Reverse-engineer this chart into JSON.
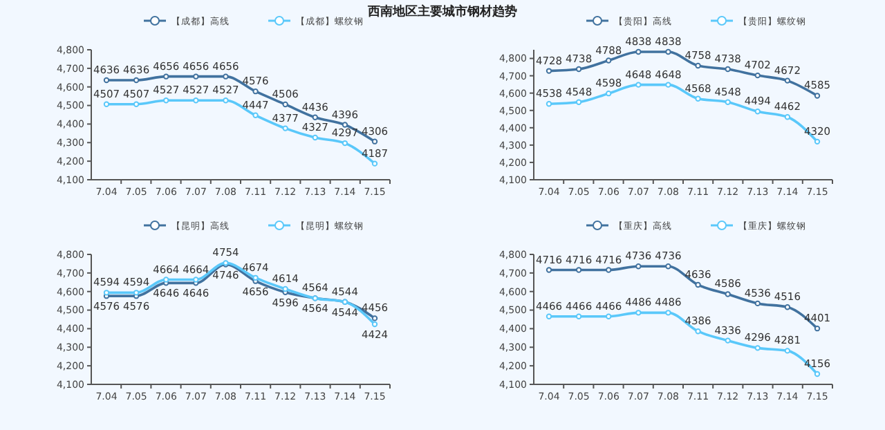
{
  "chart_data": [
    {
      "type": "line",
      "title": "西南地区主要城市钢材趋势",
      "categories": [
        "7.04",
        "7.05",
        "7.06",
        "7.07",
        "7.08",
        "7.11",
        "7.12",
        "7.13",
        "7.14",
        "7.15"
      ],
      "series": [
        {
          "name": "【成都】高线",
          "color": "#41729f",
          "values": [
            4636,
            4636,
            4656,
            4656,
            4656,
            4576,
            4506,
            4436,
            4396,
            4306
          ]
        },
        {
          "name": "【成都】螺纹钢",
          "color": "#5ac8fa",
          "values": [
            4507,
            4507,
            4527,
            4527,
            4527,
            4447,
            4377,
            4327,
            4297,
            4187
          ]
        }
      ],
      "ylim": [
        4100,
        4800
      ],
      "yticks": [
        {
          "value": 4100,
          "label": "4,100"
        },
        {
          "value": 4200,
          "label": "4,200"
        },
        {
          "value": 4300,
          "label": "4,300"
        },
        {
          "value": 4400,
          "label": "4,400"
        },
        {
          "value": 4500,
          "label": "4,500"
        },
        {
          "value": 4600,
          "label": "4,600"
        },
        {
          "value": 4700,
          "label": "4,700"
        },
        {
          "value": 4800,
          "label": "4,800"
        }
      ],
      "legend": "top",
      "marker": "circle",
      "data_labels": true,
      "grid": false
    },
    {
      "type": "line",
      "categories": [
        "7.04",
        "7.05",
        "7.06",
        "7.07",
        "7.08",
        "7.11",
        "7.12",
        "7.13",
        "7.14",
        "7.15"
      ],
      "series": [
        {
          "name": "【贵阳】高线",
          "color": "#41729f",
          "values": [
            4728,
            4738,
            4788,
            4838,
            4838,
            4758,
            4738,
            4702,
            4672,
            4585
          ]
        },
        {
          "name": "【贵阳】螺纹钢",
          "color": "#5ac8fa",
          "values": [
            4538,
            4548,
            4598,
            4648,
            4648,
            4568,
            4548,
            4494,
            4462,
            4320
          ]
        }
      ],
      "ylim": [
        4100,
        4850
      ],
      "yticks": [
        {
          "value": 4100,
          "label": "4,100"
        },
        {
          "value": 4200,
          "label": "4,200"
        },
        {
          "value": 4300,
          "label": "4,300"
        },
        {
          "value": 4400,
          "label": "4,400"
        },
        {
          "value": 4500,
          "label": "4,500"
        },
        {
          "value": 4600,
          "label": "4,600"
        },
        {
          "value": 4700,
          "label": "4,700"
        },
        {
          "value": 4800,
          "label": "4,800"
        }
      ],
      "legend": "top",
      "marker": "circle",
      "data_labels": true,
      "grid": false
    },
    {
      "type": "line",
      "categories": [
        "7.04",
        "7.05",
        "7.06",
        "7.07",
        "7.08",
        "7.11",
        "7.12",
        "7.13",
        "7.14",
        "7.15"
      ],
      "series": [
        {
          "name": "【昆明】高线",
          "color": "#41729f",
          "values": [
            4576,
            4576,
            4646,
            4646,
            4746,
            4656,
            4596,
            4564,
            4544,
            4456
          ]
        },
        {
          "name": "【昆明】螺纹钢",
          "color": "#5ac8fa",
          "values": [
            4594,
            4594,
            4664,
            4664,
            4754,
            4674,
            4614,
            4564,
            4544,
            4424
          ]
        }
      ],
      "ylim": [
        4100,
        4800
      ],
      "yticks": [
        {
          "value": 4100,
          "label": "4,100"
        },
        {
          "value": 4200,
          "label": "4,200"
        },
        {
          "value": 4300,
          "label": "4,300"
        },
        {
          "value": 4400,
          "label": "4,400"
        },
        {
          "value": 4500,
          "label": "4,500"
        },
        {
          "value": 4600,
          "label": "4,600"
        },
        {
          "value": 4700,
          "label": "4,700"
        },
        {
          "value": 4800,
          "label": "4,800"
        }
      ],
      "legend": "top",
      "marker": "circle",
      "data_labels": true,
      "grid": false
    },
    {
      "type": "line",
      "categories": [
        "7.04",
        "7.05",
        "7.06",
        "7.07",
        "7.08",
        "7.11",
        "7.12",
        "7.13",
        "7.14",
        "7.15"
      ],
      "series": [
        {
          "name": "【重庆】高线",
          "color": "#41729f",
          "values": [
            4716,
            4716,
            4716,
            4736,
            4736,
            4636,
            4586,
            4536,
            4516,
            4401
          ]
        },
        {
          "name": "【重庆】螺纹钢",
          "color": "#5ac8fa",
          "values": [
            4466,
            4466,
            4466,
            4486,
            4486,
            4386,
            4336,
            4296,
            4281,
            4156
          ]
        }
      ],
      "ylim": [
        4100,
        4800
      ],
      "yticks": [
        {
          "value": 4100,
          "label": "4,100"
        },
        {
          "value": 4200,
          "label": "4,200"
        },
        {
          "value": 4300,
          "label": "4,300"
        },
        {
          "value": 4400,
          "label": "4,400"
        },
        {
          "value": 4500,
          "label": "4,500"
        },
        {
          "value": 4600,
          "label": "4,600"
        },
        {
          "value": 4700,
          "label": "4,700"
        },
        {
          "value": 4800,
          "label": "4,800"
        }
      ],
      "legend": "top",
      "marker": "circle",
      "data_labels": true,
      "grid": false
    }
  ]
}
